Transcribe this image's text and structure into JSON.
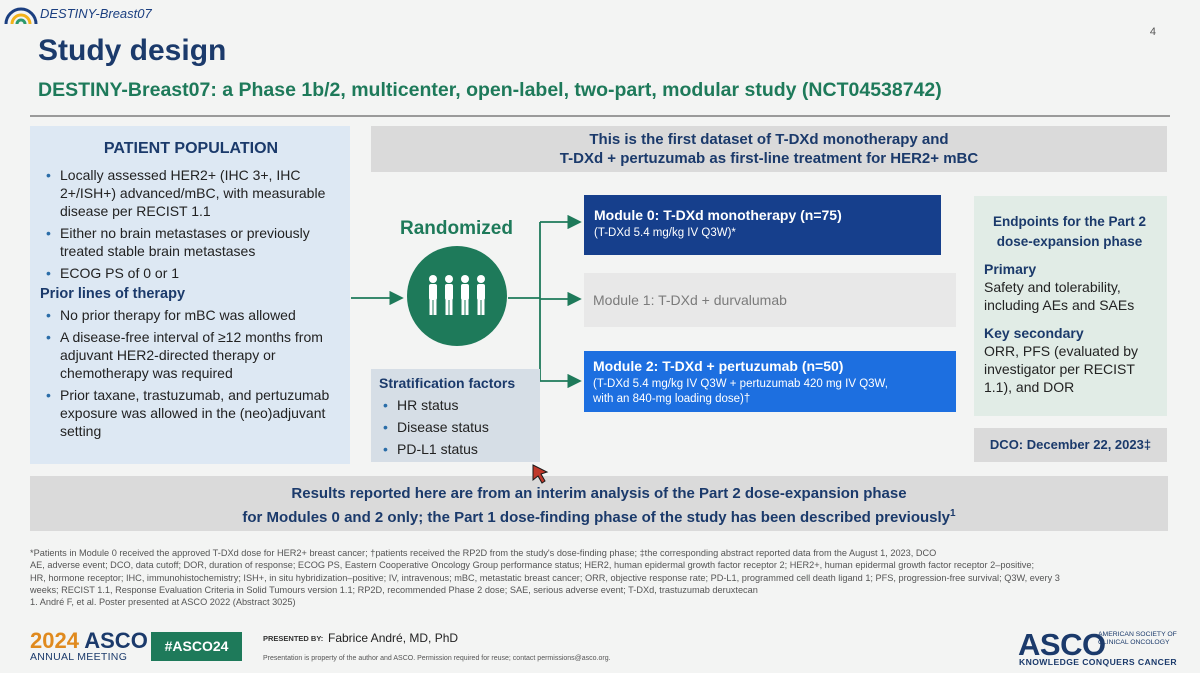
{
  "header": {
    "brand": "DESTINY-Breast07",
    "page_number": "4",
    "title": "Study design",
    "subtitle": "DESTINY-Breast07: a Phase 1b/2, multicenter, open-label, two-part, modular study (NCT04538742)"
  },
  "patient_population": {
    "heading": "PATIENT POPULATION",
    "items": [
      "Locally assessed HER2+ (IHC 3+, IHC 2+/ISH+) advanced/mBC, with measurable disease per RECIST 1.1",
      "Either no brain metastases or previously treated stable brain metastases",
      "ECOG PS of 0 or 1"
    ],
    "prior_heading": "Prior lines of therapy",
    "prior_items": [
      "No prior therapy for mBC was allowed",
      "A disease-free interval of ≥12 months from adjuvant HER2-directed therapy or chemotherapy was required",
      "Prior taxane, trastuzumab, and pertuzumab exposure was allowed in the (neo)adjuvant setting"
    ]
  },
  "banner": {
    "line1": "This is the first dataset of T-DXd monotherapy and",
    "line2": "T-DXd + pertuzumab as first-line treatment for HER2+ mBC"
  },
  "randomized": {
    "label": "Randomized",
    "icon": "people-group-icon"
  },
  "modules": {
    "m0_title": "Module 0: T-DXd monotherapy (n=75)",
    "m0_desc": "(T-DXd 5.4 mg/kg IV Q3W)*",
    "m1_title": "Module 1: T-DXd + durvalumab",
    "m2_title": "Module 2: T-DXd + pertuzumab (n=50)",
    "m2_desc_line1": "(T-DXd 5.4 mg/kg IV Q3W + pertuzumab 420 mg IV Q3W,",
    "m2_desc_line2": "with an 840-mg loading dose)†"
  },
  "stratification": {
    "heading": "Stratification factors",
    "items": [
      "HR status",
      "Disease status",
      "PD-L1 status"
    ]
  },
  "endpoints": {
    "heading_line1": "Endpoints for the Part 2",
    "heading_line2": "dose-expansion phase",
    "primary_label": "Primary",
    "primary_text": "Safety and tolerability, including AEs and SAEs",
    "secondary_label": "Key secondary",
    "secondary_text": "ORR, PFS (evaluated by investigator per RECIST 1.1), and DOR"
  },
  "dco": "DCO: December 22, 2023‡",
  "results": {
    "line1": "Results reported here are from an interim analysis of the Part 2 dose-expansion phase",
    "line2": "for Modules 0 and 2 only; the Part 1 dose-finding phase of the study has been described previously",
    "sup": "1"
  },
  "footnotes": [
    "*Patients in Module 0 received the approved T-DXd dose for HER2+ breast cancer; †patients received the RP2D from the study's dose-finding phase; ‡the corresponding abstract reported data from the August 1, 2023, DCO",
    "AE, adverse event; DCO, data cutoff; DOR, duration of response; ECOG PS, Eastern Cooperative Oncology Group performance status; HER2, human epidermal growth factor receptor 2; HER2+, human epidermal growth factor receptor 2–positive;",
    "HR, hormone receptor; IHC, immunohistochemistry; ISH+, in situ hybridization–positive; IV, intravenous; mBC, metastatic breast cancer; ORR, objective response rate; PD-L1, programmed cell death ligand 1; PFS, progression-free survival; Q3W, every 3",
    "weeks; RECIST 1.1, Response Evaluation Criteria in Solid Tumours version 1.1; RP2D, recommended Phase 2 dose; SAE, serious adverse event; T-DXd, trastuzumab deruxtecan",
    "1. André F, et al. Poster presented at ASCO 2022 (Abstract 3025)"
  ],
  "footer": {
    "year": "2024",
    "asco": "ASCO",
    "meeting": "ANNUAL MEETING",
    "hashtag": "#ASCO24",
    "presented_by": "PRESENTED BY:",
    "presenter": "Fabrice André, MD, PhD",
    "property": "Presentation is property of the author and ASCO. Permission required for reuse; contact permissions@asco.org.",
    "logo": "ASCO",
    "society_line1": "AMERICAN SOCIETY OF",
    "society_line2": "CLINICAL ONCOLOGY",
    "tagline": "KNOWLEDGE CONQUERS CANCER"
  },
  "colors": {
    "navy": "#1b3a6b",
    "green": "#1e7a5a",
    "module0": "#163f8c",
    "module2": "#1d6fe0",
    "orange": "#e08a1e"
  }
}
